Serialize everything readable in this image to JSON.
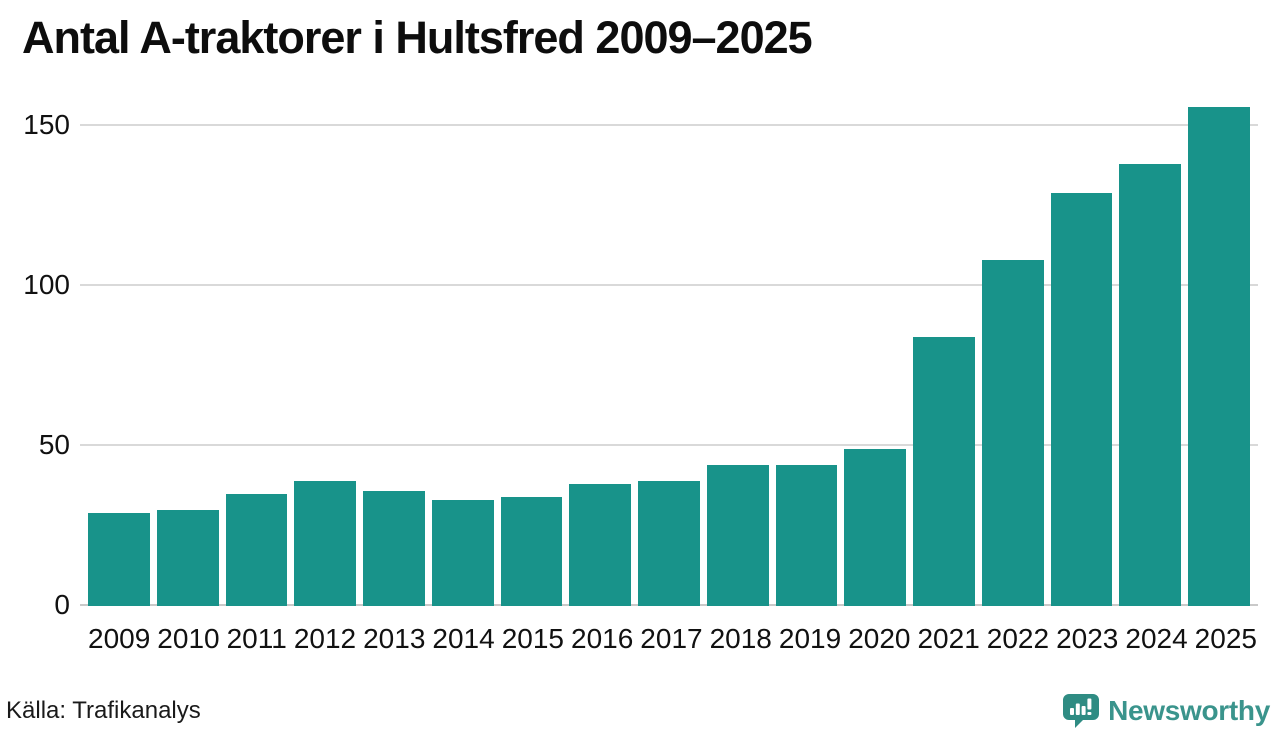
{
  "title": "Antal A-traktorer i Hultsfred 2009–2025",
  "footer": {
    "source": "Källa: Trafikanalys",
    "brand": "Newsworthy"
  },
  "colors": {
    "bar": "#18938a",
    "grid": "#d9d9d9",
    "baseline": "#c9c9c9",
    "text": "#111111",
    "brand_text": "#3a948c",
    "brand_icon": "#2f8c83"
  },
  "chart_data": {
    "type": "bar",
    "title": "Antal A-traktorer i Hultsfred 2009–2025",
    "categories": [
      "2009",
      "2010",
      "2011",
      "2012",
      "2013",
      "2014",
      "2015",
      "2016",
      "2017",
      "2018",
      "2019",
      "2020",
      "2021",
      "2022",
      "2023",
      "2024",
      "2025"
    ],
    "values": [
      29,
      30,
      35,
      39,
      36,
      33,
      34,
      38,
      39,
      44,
      44,
      49,
      84,
      108,
      129,
      138,
      156
    ],
    "xlabel": "",
    "ylabel": "",
    "ylim": [
      0,
      160
    ],
    "yticks": [
      0,
      50,
      100,
      150
    ],
    "grid": true,
    "legend": false,
    "source": "Källa: Trafikanalys"
  }
}
